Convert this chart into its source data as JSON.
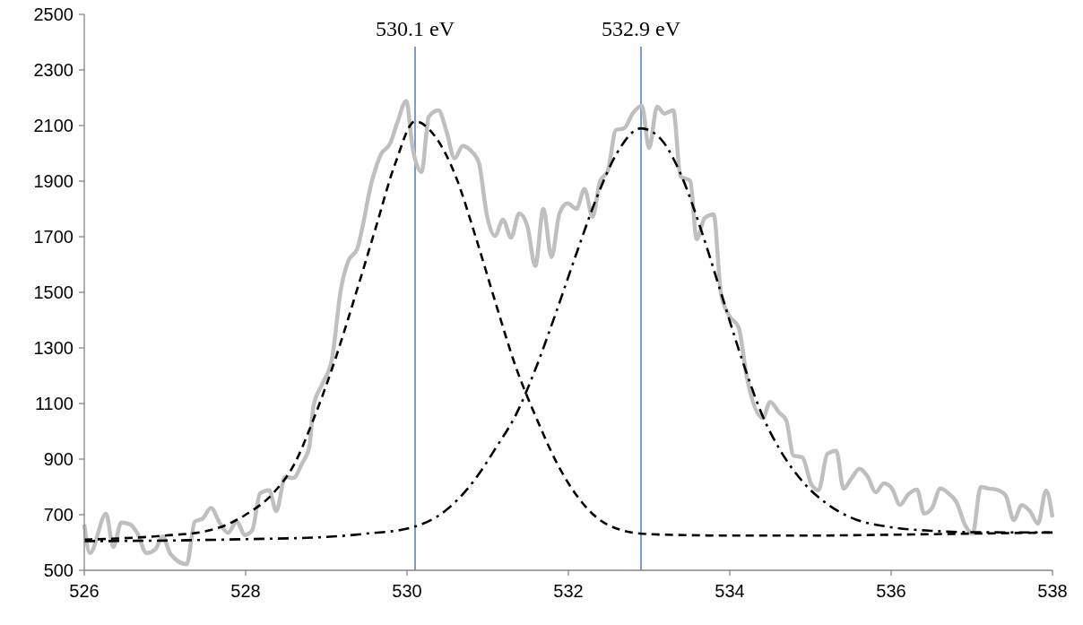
{
  "chart_data": {
    "type": "line",
    "xlim": [
      526,
      538
    ],
    "xticks": [
      526,
      528,
      530,
      532,
      534,
      536,
      538
    ],
    "ylim": [
      500,
      2500
    ],
    "yticks": [
      500,
      700,
      900,
      1100,
      1300,
      1500,
      1700,
      1900,
      2100,
      2300,
      2500
    ],
    "grid": false,
    "marker": "none",
    "series": [
      {
        "color": "#bfbfbf",
        "line_style": "solid",
        "x": [
          526.0,
          526.07,
          526.27,
          526.36,
          526.46,
          526.57,
          526.66,
          526.77,
          526.88,
          526.97,
          527.07,
          527.27,
          527.37,
          527.47,
          527.57,
          527.68,
          527.78,
          527.89,
          527.99,
          528.08,
          528.18,
          528.29,
          528.38,
          528.49,
          528.59,
          528.7,
          528.79,
          528.84,
          528.95,
          529.07,
          529.18,
          529.27,
          529.38,
          529.57,
          529.68,
          529.79,
          529.88,
          529.99,
          530.07,
          530.18,
          530.27,
          530.39,
          530.49,
          530.59,
          530.69,
          530.79,
          530.89,
          530.99,
          531.09,
          531.19,
          531.29,
          531.39,
          531.49,
          531.59,
          531.69,
          531.79,
          531.89,
          531.99,
          532.1,
          532.2,
          532.3,
          532.39,
          532.49,
          532.59,
          532.69,
          532.8,
          532.91,
          533.0,
          533.1,
          533.19,
          533.3,
          533.39,
          533.51,
          533.59,
          533.69,
          533.8,
          533.89,
          533.99,
          534.11,
          534.21,
          534.41,
          534.5,
          534.61,
          534.7,
          534.79,
          534.9,
          535.01,
          535.1,
          535.21,
          535.32,
          535.41,
          535.51,
          535.61,
          535.71,
          535.81,
          535.91,
          536.01,
          536.11,
          536.21,
          536.32,
          536.41,
          536.51,
          536.61,
          536.71,
          536.81,
          536.92,
          537.01,
          537.11,
          537.21,
          537.31,
          537.42,
          537.52,
          537.62,
          537.72,
          537.82,
          537.92,
          538.0
        ],
        "values": [
          665,
          562,
          703,
          584,
          672,
          665,
          632,
          562,
          575,
          622,
          558,
          522,
          675,
          687,
          724,
          670,
          635,
          675,
          627,
          643,
          777,
          788,
          713,
          836,
          832,
          885,
          945,
          1090,
          1170,
          1261,
          1510,
          1611,
          1655,
          1906,
          1998,
          2035,
          2111,
          2188,
          2019,
          1933,
          2132,
          2155,
          2078,
          1982,
          2027,
          2010,
          1966,
          1777,
          1703,
          1761,
          1697,
          1784,
          1740,
          1595,
          1800,
          1627,
          1784,
          1820,
          1800,
          1872,
          1772,
          1897,
          1939,
          2084,
          2090,
          2145,
          2171,
          2019,
          2168,
          2143,
          2155,
          1917,
          1901,
          1691,
          1768,
          1781,
          1498,
          1417,
          1374,
          1197,
          1048,
          1106,
          1068,
          1039,
          913,
          906,
          810,
          788,
          919,
          930,
          794,
          832,
          865,
          836,
          781,
          813,
          794,
          735,
          772,
          790,
          704,
          726,
          794,
          777,
          745,
          661,
          632,
          800,
          794,
          790,
          769,
          681,
          735,
          713,
          668,
          787,
          691
        ]
      },
      {
        "color": "#000000",
        "line_style": "dashed",
        "x": [
          526,
          527,
          527.5,
          528,
          528.35,
          528.6,
          528.85,
          529.1,
          529.35,
          529.6,
          529.85,
          530.1,
          530.35,
          530.6,
          530.85,
          531.1,
          531.35,
          531.6,
          531.85,
          532.1,
          532.35,
          532.6,
          533,
          534,
          535,
          536,
          537,
          538
        ],
        "values": [
          610,
          625,
          640,
          700,
          780,
          880,
          1050,
          1250,
          1480,
          1720,
          1960,
          2115,
          2060,
          1920,
          1700,
          1460,
          1230,
          1050,
          890,
          770,
          690,
          650,
          630,
          625,
          625,
          628,
          632,
          636
        ]
      },
      {
        "color": "#000000",
        "line_style": "dashdot",
        "x": [
          526,
          527,
          528,
          529,
          529.5,
          530,
          530.5,
          530.85,
          531.1,
          531.35,
          531.6,
          531.85,
          532.1,
          532.35,
          532.6,
          532.9,
          533.15,
          533.4,
          533.65,
          533.9,
          534.15,
          534.4,
          534.65,
          534.9,
          535.2,
          535.5,
          536,
          536.5,
          537,
          538
        ],
        "values": [
          605,
          607,
          612,
          620,
          632,
          650,
          720,
          830,
          940,
          1060,
          1230,
          1430,
          1640,
          1840,
          2000,
          2090,
          2050,
          1920,
          1720,
          1490,
          1260,
          1060,
          920,
          820,
          740,
          690,
          655,
          642,
          637,
          636
        ]
      }
    ],
    "ref_lines": [
      {
        "axis": "x",
        "value": 530.1,
        "label": "530.1 eV",
        "color": "#4a7ebb"
      },
      {
        "axis": "x",
        "value": 532.9,
        "label": "532.9 eV",
        "color": "#4a7ebb"
      }
    ]
  }
}
